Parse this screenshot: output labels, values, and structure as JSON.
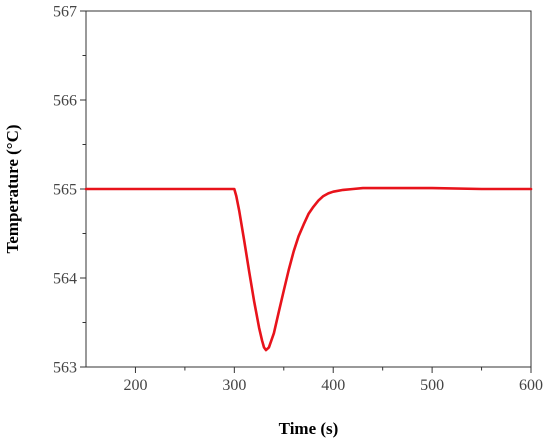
{
  "chart_data": {
    "type": "line",
    "title": "",
    "xlabel": "Time (s)",
    "ylabel": "Temperature (°C)",
    "xlim": [
      150,
      600
    ],
    "ylim": [
      563,
      567
    ],
    "x_ticks": [
      200,
      300,
      400,
      500,
      600
    ],
    "y_ticks": [
      563,
      564,
      565,
      566,
      567
    ],
    "grid": false,
    "legend": "none",
    "series": [
      {
        "color": "#e8131b",
        "x": [
          150,
          200,
          250,
          300,
          302,
          305,
          310,
          315,
          320,
          325,
          328,
          330,
          332,
          335,
          340,
          345,
          350,
          355,
          360,
          365,
          370,
          375,
          380,
          385,
          390,
          395,
          400,
          410,
          420,
          430,
          440,
          460,
          480,
          500,
          550,
          600
        ],
        "y": [
          565.0,
          565.0,
          565.0,
          565.0,
          564.92,
          564.75,
          564.42,
          564.07,
          563.74,
          563.44,
          563.3,
          563.22,
          563.19,
          563.22,
          563.38,
          563.62,
          563.86,
          564.09,
          564.3,
          564.47,
          564.6,
          564.72,
          564.8,
          564.87,
          564.92,
          564.95,
          564.97,
          564.99,
          565.0,
          565.01,
          565.01,
          565.01,
          565.01,
          565.01,
          565.0,
          565.0
        ]
      }
    ]
  }
}
